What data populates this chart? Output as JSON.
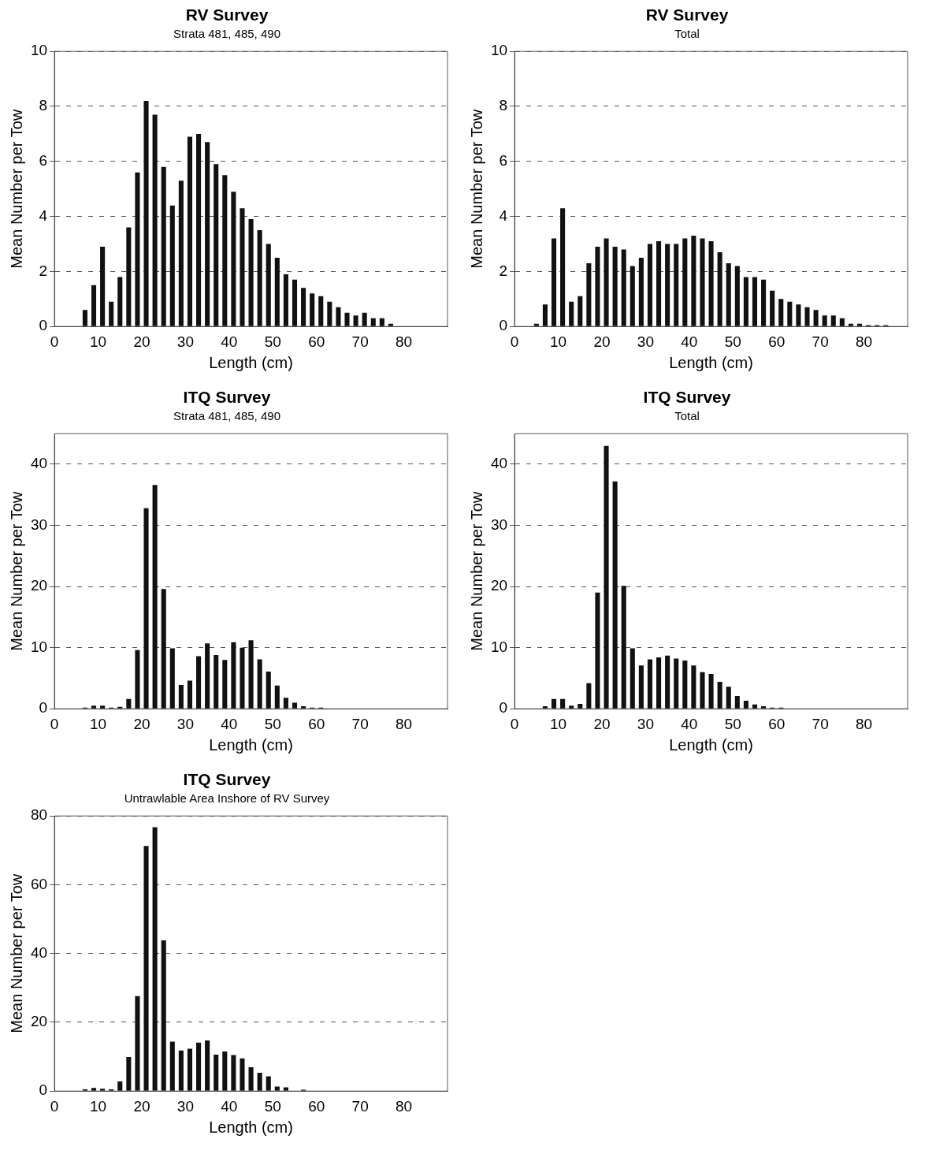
{
  "chart_data": [
    {
      "type": "bar",
      "title": "RV Survey",
      "subtitle": "Strata 481, 485, 490",
      "xlabel": "Length (cm)",
      "ylabel": "Mean Number per Tow",
      "x": [
        7,
        9,
        11,
        13,
        15,
        17,
        19,
        21,
        23,
        25,
        27,
        29,
        31,
        33,
        35,
        37,
        39,
        41,
        43,
        45,
        47,
        49,
        51,
        53,
        55,
        57,
        59,
        61,
        63,
        65,
        67,
        69,
        71,
        73,
        75,
        77
      ],
      "values": [
        0.6,
        1.5,
        2.9,
        0.9,
        1.8,
        3.6,
        5.6,
        8.2,
        7.7,
        5.8,
        4.4,
        5.3,
        6.9,
        7.0,
        6.7,
        5.9,
        5.5,
        4.9,
        4.3,
        3.9,
        3.5,
        3.0,
        2.5,
        1.9,
        1.7,
        1.4,
        1.2,
        1.1,
        0.9,
        0.7,
        0.5,
        0.4,
        0.5,
        0.3,
        0.3,
        0.1
      ],
      "color": "#111111",
      "xlim": [
        0,
        90
      ],
      "xticks": [
        0,
        10,
        20,
        30,
        40,
        50,
        60,
        70,
        80
      ],
      "ylim": [
        0,
        10
      ],
      "yticks": [
        0,
        2,
        4,
        6,
        8,
        10
      ],
      "grid": "y",
      "legend": false
    },
    {
      "type": "bar",
      "title": "RV Survey",
      "subtitle": "Total",
      "xlabel": "Length (cm)",
      "ylabel": "Mean Number per Tow",
      "x": [
        5,
        7,
        9,
        11,
        13,
        15,
        17,
        19,
        21,
        23,
        25,
        27,
        29,
        31,
        33,
        35,
        37,
        39,
        41,
        43,
        45,
        47,
        49,
        51,
        53,
        55,
        57,
        59,
        61,
        63,
        65,
        67,
        69,
        71,
        73,
        75,
        77,
        79,
        81,
        83,
        85
      ],
      "values": [
        0.1,
        0.8,
        3.2,
        4.3,
        0.9,
        1.1,
        2.3,
        2.9,
        3.2,
        2.9,
        2.8,
        2.2,
        2.5,
        3.0,
        3.1,
        3.0,
        3.0,
        3.2,
        3.3,
        3.2,
        3.1,
        2.7,
        2.3,
        2.2,
        1.8,
        1.8,
        1.7,
        1.3,
        1.0,
        0.9,
        0.8,
        0.7,
        0.6,
        0.4,
        0.4,
        0.3,
        0.1,
        0.1,
        0.05,
        0.05,
        0.05
      ],
      "color": "#111111",
      "xlim": [
        0,
        90
      ],
      "xticks": [
        0,
        10,
        20,
        30,
        40,
        50,
        60,
        70,
        80
      ],
      "ylim": [
        0,
        10
      ],
      "yticks": [
        0,
        2,
        4,
        6,
        8,
        10
      ],
      "grid": "y",
      "legend": false
    },
    {
      "type": "bar",
      "title": "ITQ Survey",
      "subtitle": "Strata 481, 485, 490",
      "xlabel": "Length (cm)",
      "ylabel": "Mean Number per Tow",
      "x": [
        7,
        9,
        11,
        13,
        15,
        17,
        19,
        21,
        23,
        25,
        27,
        29,
        31,
        33,
        35,
        37,
        39,
        41,
        43,
        45,
        47,
        49,
        51,
        53,
        55,
        57,
        59,
        61
      ],
      "values": [
        0.2,
        0.5,
        0.5,
        0.2,
        0.3,
        1.6,
        9.6,
        32.8,
        36.6,
        19.6,
        9.9,
        3.9,
        4.6,
        8.6,
        10.7,
        8.8,
        8.0,
        10.9,
        10.0,
        11.2,
        8.1,
        6.1,
        3.8,
        1.8,
        1.0,
        0.4,
        0.2,
        0.2
      ],
      "color": "#111111",
      "xlim": [
        0,
        90
      ],
      "xticks": [
        0,
        10,
        20,
        30,
        40,
        50,
        60,
        70,
        80
      ],
      "ylim": [
        0,
        45
      ],
      "yticks": [
        0,
        10,
        20,
        30,
        40
      ],
      "grid": "y",
      "legend": false
    },
    {
      "type": "bar",
      "title": "ITQ Survey",
      "subtitle": "Total",
      "xlabel": "Length (cm)",
      "ylabel": "Mean Number per Tow",
      "x": [
        7,
        9,
        11,
        13,
        15,
        17,
        19,
        21,
        23,
        25,
        27,
        29,
        31,
        33,
        35,
        37,
        39,
        41,
        43,
        45,
        47,
        49,
        51,
        53,
        55,
        57,
        59,
        61
      ],
      "values": [
        0.4,
        1.6,
        1.6,
        0.5,
        0.8,
        4.2,
        19.0,
        43.0,
        37.2,
        20.1,
        9.9,
        7.1,
        8.1,
        8.4,
        8.7,
        8.2,
        7.9,
        7.1,
        6.0,
        5.7,
        4.4,
        3.6,
        2.1,
        1.3,
        0.7,
        0.4,
        0.2,
        0.2
      ],
      "color": "#111111",
      "xlim": [
        0,
        90
      ],
      "xticks": [
        0,
        10,
        20,
        30,
        40,
        50,
        60,
        70,
        80
      ],
      "ylim": [
        0,
        45
      ],
      "yticks": [
        0,
        10,
        20,
        30,
        40
      ],
      "grid": "y",
      "legend": false
    },
    {
      "type": "bar",
      "title": "ITQ Survey",
      "subtitle": "Untrawlable Area Inshore of RV Survey",
      "xlabel": "Length (cm)",
      "ylabel": "Mean Number per Tow",
      "x": [
        7,
        9,
        11,
        13,
        15,
        17,
        19,
        21,
        23,
        25,
        27,
        29,
        31,
        33,
        35,
        37,
        39,
        41,
        43,
        45,
        47,
        49,
        51,
        53,
        57
      ],
      "values": [
        0.5,
        0.9,
        0.7,
        0.5,
        2.8,
        9.9,
        27.6,
        71.3,
        76.7,
        43.8,
        14.4,
        11.8,
        12.3,
        14.1,
        14.7,
        10.6,
        11.5,
        10.5,
        9.5,
        6.9,
        5.3,
        4.3,
        1.3,
        1.1,
        0.4
      ],
      "color": "#111111",
      "xlim": [
        0,
        90
      ],
      "xticks": [
        0,
        10,
        20,
        30,
        40,
        50,
        60,
        70,
        80
      ],
      "ylim": [
        0,
        80
      ],
      "yticks": [
        0,
        20,
        40,
        60,
        80
      ],
      "grid": "y",
      "legend": false
    }
  ]
}
